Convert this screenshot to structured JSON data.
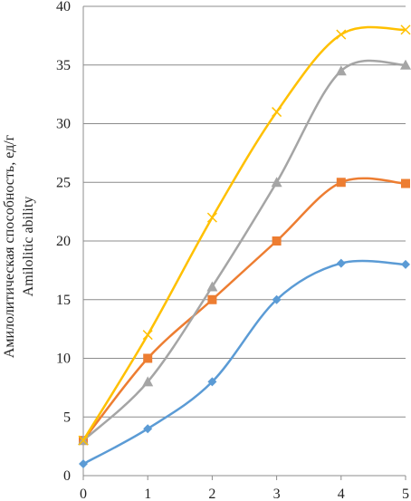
{
  "chart_data": {
    "type": "line",
    "ylabel": "Амилолитическая способность, ед/г",
    "ylabel2": "Amilolitic ability",
    "xlabel": "",
    "x": [
      0,
      1,
      2,
      3,
      4,
      5
    ],
    "xlim": [
      0,
      5
    ],
    "ylim": [
      0,
      40
    ],
    "y_ticks": [
      0,
      5,
      10,
      15,
      20,
      25,
      30,
      35,
      40
    ],
    "x_ticks": [
      0,
      1,
      2,
      3,
      4,
      5
    ],
    "grid": "horizontal",
    "legend": "none",
    "smooth": true,
    "series": [
      {
        "color": "#5b9bd5",
        "marker": "diamond",
        "values": [
          1,
          4,
          8,
          15,
          18.1,
          18
        ]
      },
      {
        "color": "#ed7d31",
        "marker": "square",
        "values": [
          3,
          10,
          15,
          20,
          25,
          24.9
        ]
      },
      {
        "color": "#a5a5a5",
        "marker": "triangle",
        "values": [
          3,
          8,
          16.1,
          25,
          34.5,
          35
        ]
      },
      {
        "color": "#ffc000",
        "marker": "x",
        "values": [
          3,
          12,
          22,
          31,
          37.6,
          38
        ]
      }
    ]
  }
}
